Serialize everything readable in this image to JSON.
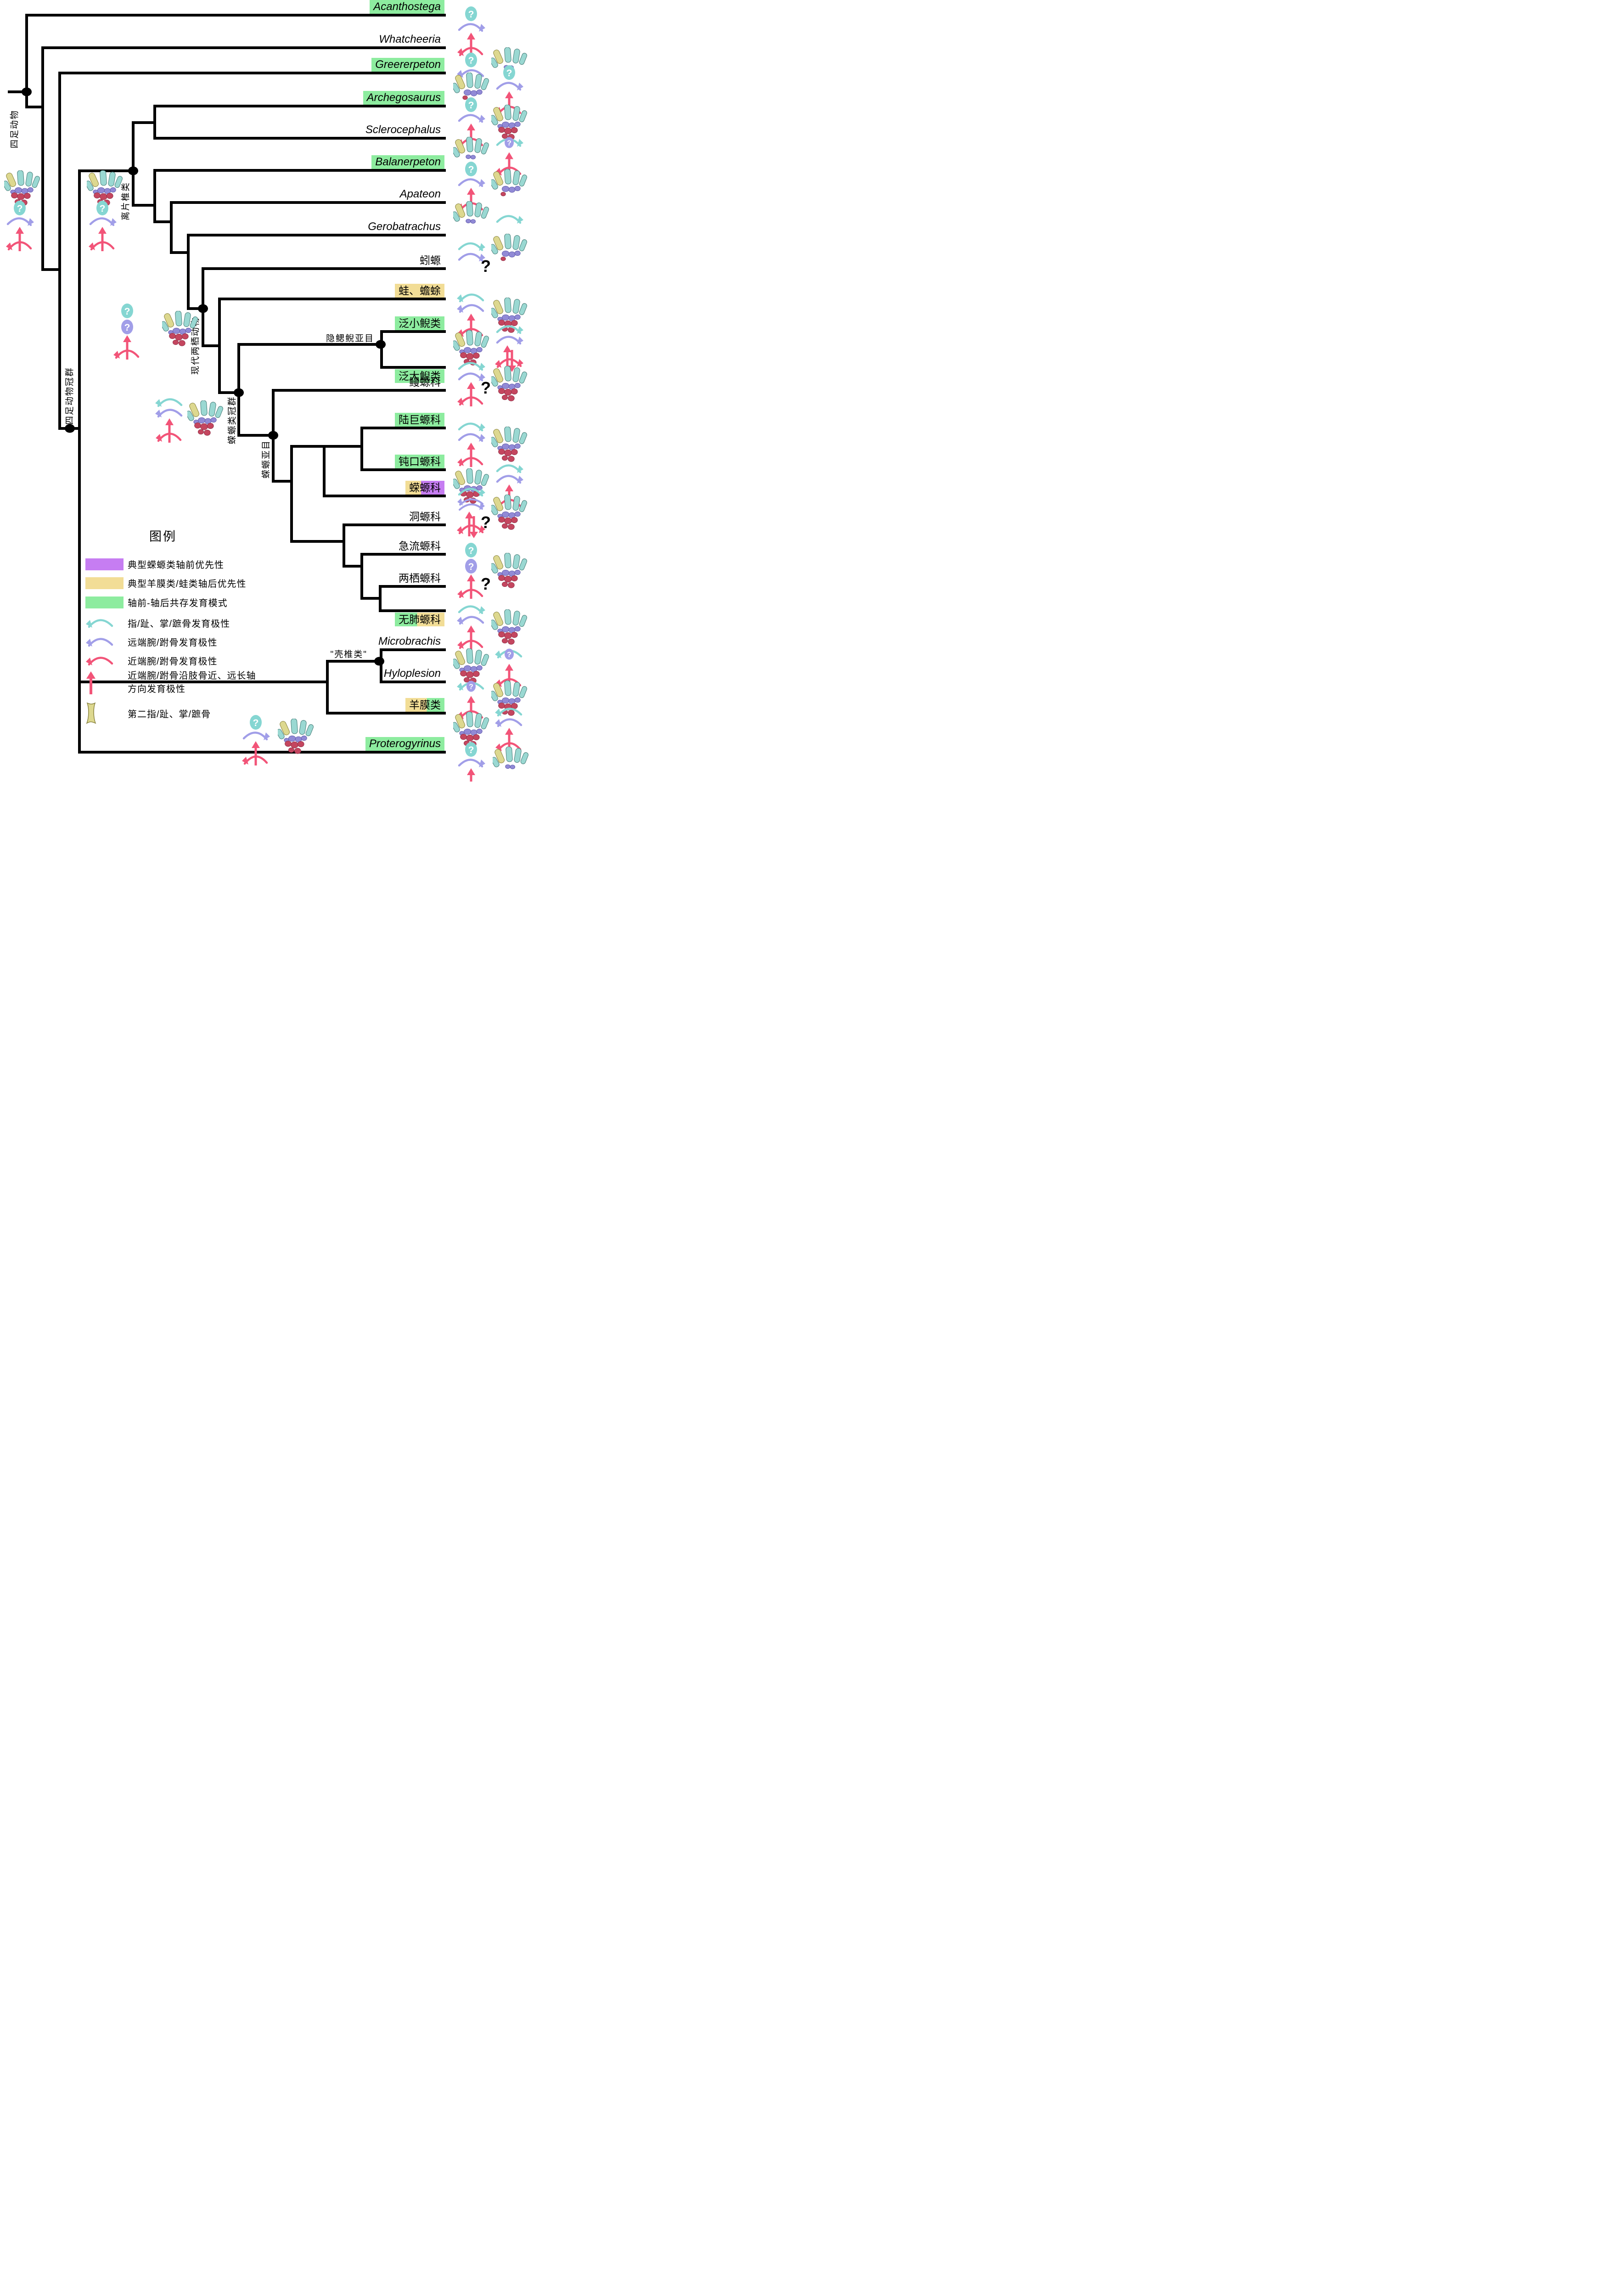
{
  "figure": {
    "type": "phylogenetic cladogram",
    "language": "Chinese",
    "subject": "Tetrapod and salamander limb development polarity"
  },
  "colors": {
    "green": "#8dec9f",
    "yellow": "#f2dd96",
    "purple": "#c67df2",
    "arrow_cyan": "#85d6d2",
    "arrow_purple": "#a19ee8",
    "arrow_pink": "#f25478",
    "bone_cyan": "#9ad8d2",
    "bone_yellow": "#ddd88f",
    "bone_purple": "#918ad6",
    "bone_red": "#c4465f",
    "line": "#000000"
  },
  "clade_labels": [
    {
      "label": "四足动物"
    },
    {
      "label": "离片椎类"
    },
    {
      "label": "现代两栖动物"
    },
    {
      "label": "四足动物冠群"
    },
    {
      "label": "蝾螈类冠群"
    },
    {
      "label": "蝾螈亚目"
    },
    {
      "label": "隐鳃鲵亚目"
    },
    {
      "label": "\"壳椎类\""
    }
  ],
  "taxa": [
    {
      "label": "Acanthostega",
      "latin": true,
      "highlight": "green",
      "icons": [
        {
          "col": 1,
          "type": "arrows",
          "parts": [
            "q.c",
            "arc.p.r",
            "upArc.k"
          ]
        }
      ]
    },
    {
      "label": "Whatcheeria",
      "latin": true,
      "highlight": null,
      "icons": [
        {
          "col": 1,
          "type": "arrows",
          "parts": [
            "q.c",
            "arc.p.l"
          ]
        },
        {
          "col": 2,
          "type": "hand",
          "variant": "sparse"
        }
      ]
    },
    {
      "label": "Greererpeton",
      "latin": true,
      "highlight": "green",
      "icons": [
        {
          "col": 1,
          "type": "hand",
          "variant": "med"
        },
        {
          "col": 2,
          "type": "arrows",
          "parts": [
            "q.c",
            "arc.p.r",
            "upArc.k"
          ]
        }
      ]
    },
    {
      "label": "Archegosaurus",
      "latin": true,
      "highlight": "green",
      "icons": [
        {
          "col": 1,
          "type": "arrows",
          "parts": [
            "q.c",
            "arc.p.r",
            "upArc.k"
          ]
        },
        {
          "col": 2,
          "type": "hand",
          "variant": "full"
        }
      ]
    },
    {
      "label": "Sclerocephalus",
      "latin": true,
      "highlight": null,
      "icons": [
        {
          "col": 1,
          "type": "hand",
          "variant": "sparse"
        },
        {
          "col": 2,
          "type": "arrows",
          "parts": [
            "arcq.c.r",
            "upArc.k"
          ]
        }
      ]
    },
    {
      "label": "Balanerpeton",
      "latin": true,
      "highlight": "green",
      "icons": [
        {
          "col": 1,
          "type": "arrows",
          "parts": [
            "q.c",
            "arc.p.r",
            "upArc.k"
          ]
        },
        {
          "col": 2,
          "type": "hand",
          "variant": "med"
        }
      ]
    },
    {
      "label": "Apateon",
      "latin": true,
      "highlight": null,
      "icons": [
        {
          "col": 1,
          "type": "hand",
          "variant": "sparse"
        },
        {
          "col": 2,
          "type": "arrows",
          "parts": [
            "arc.c.r"
          ]
        }
      ]
    },
    {
      "label": "Gerobatrachus",
      "latin": true,
      "highlight": null,
      "icons": [
        {
          "col": 1,
          "type": "arrows",
          "parts": [
            "arc.c.r",
            "arc.p.r"
          ]
        },
        {
          "col": 2,
          "type": "hand",
          "variant": "med"
        }
      ]
    },
    {
      "label": "蚓螈",
      "latin": false,
      "highlight": null,
      "icons": [
        {
          "type": "question",
          "mark": "?"
        }
      ]
    },
    {
      "label": "蛙、蟾蜍",
      "latin": false,
      "highlight": "yellow",
      "icons": [
        {
          "col": 1,
          "type": "arrows",
          "parts": [
            "arc.c.l",
            "arc.p.l",
            "upArc.k"
          ]
        },
        {
          "col": 2,
          "type": "hand",
          "variant": "full"
        }
      ]
    },
    {
      "label": "泛小鲵类",
      "latin": false,
      "highlight": "green",
      "icons": [
        {
          "col": 1,
          "type": "hand",
          "variant": "full"
        },
        {
          "col": 2,
          "type": "arrows",
          "parts": [
            "arc.c.r",
            "arc.p.r",
            "upArc2.k"
          ]
        }
      ]
    },
    {
      "label": "泛大鲵类",
      "latin": false,
      "highlight": "green",
      "icons": [
        {
          "col": 1,
          "type": "arrows",
          "parts": [
            "arc.c.r",
            "arc.p.r",
            "upArc.k"
          ]
        },
        {
          "col": 2,
          "type": "hand",
          "variant": "full"
        }
      ]
    },
    {
      "label": "鳗螈科",
      "latin": false,
      "highlight": null,
      "icons": [
        {
          "type": "question",
          "mark": "?"
        }
      ]
    },
    {
      "label": "陆巨螈科",
      "latin": false,
      "highlight": "green",
      "icons": [
        {
          "col": 1,
          "type": "arrows",
          "parts": [
            "arc.c.r",
            "arc.p.r",
            "upArc.k"
          ]
        },
        {
          "col": 2,
          "type": "hand",
          "variant": "full"
        }
      ]
    },
    {
      "label": "钝口螈科",
      "latin": false,
      "highlight": "green",
      "icons": [
        {
          "col": 1,
          "type": "hand",
          "variant": "full"
        },
        {
          "col": 2,
          "type": "arrows",
          "parts": [
            "arc.c.r",
            "arc.p.r",
            "upArc.k"
          ]
        }
      ]
    },
    {
      "label": "蝾螈科",
      "latin": false,
      "highlight": "yellow-purple",
      "icons": [
        {
          "col": 1,
          "type": "arrows",
          "parts": [
            "arc.c.r",
            "arc2.p",
            "upArc2.k"
          ]
        },
        {
          "col": 2,
          "type": "hand",
          "variant": "full"
        }
      ]
    },
    {
      "label": "洞螈科",
      "latin": false,
      "highlight": null,
      "icons": [
        {
          "type": "question",
          "mark": "?"
        }
      ]
    },
    {
      "label": "急流螈科",
      "latin": false,
      "highlight": null,
      "icons": [
        {
          "col": 1,
          "type": "arrows",
          "parts": [
            "q.c",
            "q.p",
            "upArc.k"
          ]
        },
        {
          "col": 2,
          "type": "hand",
          "variant": "full"
        }
      ]
    },
    {
      "label": "两栖螈科",
      "latin": false,
      "highlight": null,
      "icons": [
        {
          "type": "question",
          "mark": "?"
        }
      ]
    },
    {
      "label": "无肺螈科",
      "latin": false,
      "highlight": "green-yellow",
      "icons": [
        {
          "col": 1,
          "type": "arrows",
          "parts": [
            "arc.c.r",
            "arc.p.l",
            "upArc.k"
          ]
        },
        {
          "col": 2,
          "type": "hand",
          "variant": "full"
        }
      ]
    },
    {
      "label": "Microbrachis",
      "latin": true,
      "highlight": null,
      "icons": [
        {
          "col": 1,
          "type": "hand",
          "variant": "full"
        },
        {
          "col": 2,
          "type": "arrows",
          "parts": [
            "arcq.c.l",
            "upArc.k"
          ]
        }
      ]
    },
    {
      "label": "Hyloplesion",
      "latin": true,
      "highlight": null,
      "icons": [
        {
          "col": 1,
          "type": "arrows",
          "parts": [
            "arcq.c.l",
            "upArc.k"
          ]
        },
        {
          "col": 2,
          "type": "hand",
          "variant": "full"
        }
      ]
    },
    {
      "label": "羊膜类",
      "latin": false,
      "highlight": "yellow-green",
      "icons": [
        {
          "col": 1,
          "type": "hand",
          "variant": "full"
        },
        {
          "col": 2,
          "type": "arrows",
          "parts": [
            "arc.c.l",
            "arc.p.l",
            "upArc.k"
          ]
        }
      ]
    },
    {
      "label": "Proterogyrinus",
      "latin": true,
      "highlight": "green",
      "icons": [
        {
          "col": 1,
          "type": "arrows",
          "parts": [
            "q.c",
            "arc.p.r",
            "upArc.k"
          ]
        },
        {
          "col": 2,
          "type": "hand",
          "variant": "sparse"
        }
      ]
    }
  ],
  "node_clusters": [
    {
      "name": "root-left",
      "arrows": {
        "type": "arrows",
        "parts": [
          "q.c",
          "arc.p.r",
          "upArc.k"
        ]
      },
      "hand": {
        "type": "hand",
        "variant": "full"
      }
    },
    {
      "name": "temnospondyl",
      "arrows": {
        "type": "arrows",
        "parts": [
          "q.c",
          "arc.p.r",
          "upArc.k"
        ]
      },
      "hand": {
        "type": "hand",
        "variant": "full"
      }
    },
    {
      "name": "lissamphibia",
      "arrows": {
        "type": "arrows",
        "parts": [
          "q.c",
          "q.p",
          "upArc.k"
        ]
      },
      "hand": {
        "type": "hand",
        "variant": "full"
      }
    },
    {
      "name": "urodele-crown",
      "arrows": {
        "type": "arrows",
        "parts": [
          "arc.c.l",
          "arc.p.l",
          "upArc.k"
        ]
      },
      "hand": {
        "type": "hand",
        "variant": "full"
      }
    },
    {
      "name": "bottom",
      "arrows": {
        "type": "arrows",
        "parts": [
          "q.c",
          "arc.p.r",
          "upArc.k"
        ]
      },
      "hand": {
        "type": "hand",
        "variant": "full"
      }
    }
  ],
  "legend": {
    "title": "图例",
    "items": [
      {
        "icon": {
          "type": "swatch",
          "color_key": "purple"
        },
        "label": "典型蝾螈类轴前优先性"
      },
      {
        "icon": {
          "type": "swatch",
          "color_key": "yellow"
        },
        "label": "典型羊膜类/蛙类轴后优先性"
      },
      {
        "icon": {
          "type": "swatch",
          "color_key": "green"
        },
        "label": "轴前-轴后共存发育模式"
      },
      {
        "icon": {
          "type": "arrows",
          "parts": [
            "arc.c.l"
          ]
        },
        "label": "指/趾、掌/蹠骨发育极性"
      },
      {
        "icon": {
          "type": "arrows",
          "parts": [
            "arc.p.l"
          ]
        },
        "label": "远端腕/跗骨发育极性"
      },
      {
        "icon": {
          "type": "arrows",
          "parts": [
            "arc.k.l"
          ]
        },
        "label": "近端腕/跗骨发育极性"
      },
      {
        "icon": {
          "type": "arrows",
          "parts": [
            "up.k"
          ]
        },
        "label": "近端腕/跗骨沿肢骨近、远长轴\n方向发育极性"
      },
      {
        "icon": {
          "type": "bone"
        },
        "label": "第二指/趾、掌/蹠骨"
      }
    ]
  }
}
